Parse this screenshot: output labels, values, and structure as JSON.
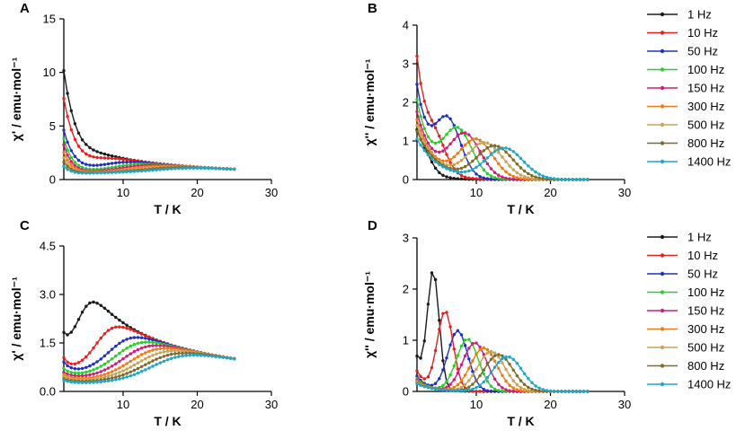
{
  "chart_data": [
    {
      "panel_id": "A",
      "type": "line",
      "xlabel": "T / K",
      "ylabel": "χ' / emu·mol⁻¹",
      "xlim": [
        2,
        30
      ],
      "ylim": [
        0,
        15
      ],
      "xticks": [
        "10",
        "20",
        "30"
      ],
      "yticks": [
        "0",
        "5",
        "10",
        "15"
      ],
      "legend": "none",
      "model": {
        "T_range": [
          2,
          25
        ],
        "high_T": {
          "a": 25.0,
          "offset": 0.08
        },
        "peak_T": [
          4.0,
          6.0,
          8.2,
          10.0,
          11.2,
          12.5,
          13.8,
          14.8,
          16.2
        ],
        "low_T_value": [
          11.5,
          7.8,
          4.6,
          3.8,
          3.2,
          2.5,
          2.0,
          1.6,
          1.2
        ],
        "low_T_decay": [
          2.2,
          1.8,
          1.5,
          1.3,
          1.2,
          1.2,
          1.2,
          1.2,
          1.2
        ],
        "step_width": [
          1.5,
          1.7,
          1.9,
          2.0,
          2.1,
          2.2,
          2.3,
          2.4,
          2.5
        ]
      }
    },
    {
      "panel_id": "B",
      "type": "line",
      "xlabel": "T / K",
      "ylabel": "χ'' / emu·mol⁻¹",
      "xlim": [
        2,
        30
      ],
      "ylim": [
        0,
        4
      ],
      "xticks": [
        "10",
        "20",
        "30"
      ],
      "yticks": [
        "0",
        "1",
        "2",
        "3",
        "4"
      ],
      "legend": "right",
      "model": {
        "T_range": [
          2,
          25
        ],
        "peak_T": [
          3.0,
          4.5,
          6.2,
          7.5,
          8.5,
          10.0,
          11.2,
          12.5,
          13.8
        ],
        "peak_value": [
          0.3,
          0.7,
          1.4,
          1.22,
          1.12,
          1.0,
          0.92,
          0.85,
          0.8
        ],
        "peak_width": [
          1.5,
          2.0,
          2.4,
          2.7,
          2.9,
          3.1,
          3.3,
          3.4,
          3.5
        ],
        "low_T_value": [
          1.1,
          3.05,
          2.4,
          2.05,
          1.75,
          1.55,
          1.4,
          1.25,
          1.05
        ],
        "low_T_decay": [
          1.4,
          1.6,
          1.8,
          2.0,
          2.2,
          2.4,
          2.6,
          2.8,
          3.0
        ]
      }
    },
    {
      "panel_id": "C",
      "type": "line",
      "xlabel": "T / K",
      "ylabel": "χ' / emu·mol⁻¹",
      "xlim": [
        2,
        30
      ],
      "ylim": [
        0,
        4.5
      ],
      "xticks": [
        "10",
        "20",
        "30"
      ],
      "yticks": [
        "0.0",
        "1.5",
        "3.0",
        "4.5"
      ],
      "legend": "none",
      "model": {
        "T_range": [
          2,
          25
        ],
        "high_T": {
          "a": 27.0,
          "offset": 0.05
        },
        "step_T": [
          4.5,
          7.0,
          9.0,
          10.0,
          11.0,
          12.0,
          13.0,
          14.0,
          15.0
        ],
        "step_width": [
          0.9,
          1.3,
          1.6,
          1.8,
          1.9,
          2.0,
          2.1,
          2.2,
          2.3
        ],
        "base_value": [
          1.25,
          0.55,
          0.5,
          0.4,
          0.35,
          0.3,
          0.28,
          0.25,
          0.22
        ],
        "upturn_value": [
          0.35,
          0.4,
          0.35,
          0.25,
          0.2,
          0.18,
          0.15,
          0.12,
          0.1
        ],
        "upturn_decay": [
          0.6,
          0.9,
          1.1,
          1.2,
          1.3,
          1.4,
          1.4,
          1.4,
          1.4
        ]
      }
    },
    {
      "panel_id": "D",
      "type": "line",
      "xlabel": "T / K",
      "ylabel": "χ'' / emu·mol⁻¹",
      "xlim": [
        2,
        30
      ],
      "ylim": [
        0,
        3
      ],
      "xticks": [
        "10",
        "20",
        "30"
      ],
      "yticks": [
        "0",
        "1",
        "2",
        "3"
      ],
      "legend": "right",
      "model": {
        "T_range": [
          2,
          25
        ],
        "peak_T": [
          4.2,
          5.8,
          7.5,
          8.8,
          9.8,
          11.0,
          12.0,
          13.0,
          14.2
        ],
        "peak_value": [
          2.25,
          1.55,
          1.18,
          1.02,
          0.95,
          0.85,
          0.78,
          0.72,
          0.68
        ],
        "peak_width": [
          1.1,
          1.5,
          1.9,
          2.1,
          2.3,
          2.5,
          2.6,
          2.7,
          2.8
        ],
        "low_T_value": [
          0.65,
          0.4,
          0.3,
          0.25,
          0.22,
          0.2,
          0.18,
          0.16,
          0.15
        ],
        "low_T_decay": [
          1.3,
          1.4,
          1.5,
          1.6,
          1.7,
          1.8,
          1.9,
          2.0,
          2.1
        ]
      }
    }
  ],
  "series": [
    {
      "name": "1 Hz",
      "color": "#1a1a1a"
    },
    {
      "name": "10 Hz",
      "color": "#e62020"
    },
    {
      "name": "50 Hz",
      "color": "#1f2fbf"
    },
    {
      "name": "100 Hz",
      "color": "#2ecc2e"
    },
    {
      "name": "150 Hz",
      "color": "#cc1f79"
    },
    {
      "name": "300 Hz",
      "color": "#f07a17"
    },
    {
      "name": "500 Hz",
      "color": "#c8a45a"
    },
    {
      "name": "800 Hz",
      "color": "#7d6b28"
    },
    {
      "name": "1400 Hz",
      "color": "#1fa6c8"
    }
  ]
}
